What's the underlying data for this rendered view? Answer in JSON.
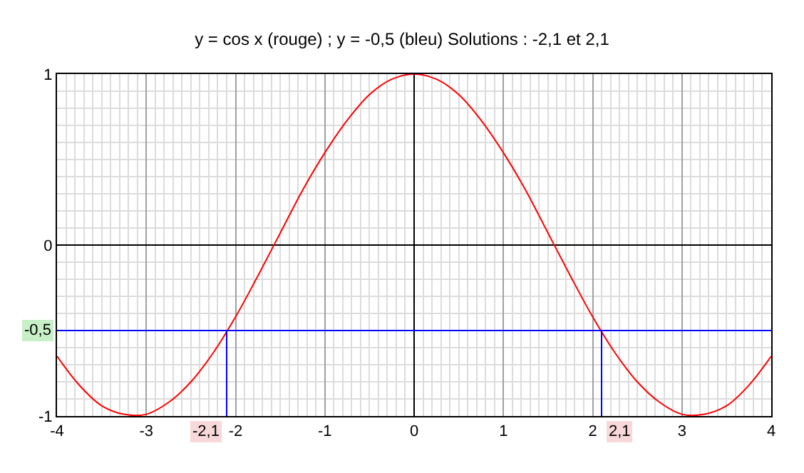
{
  "chart_data": {
    "type": "line",
    "title": "y = cos x (rouge) ; y = -0,5 (bleu) Solutions : -2,1 et 2,1",
    "series": [
      {
        "color": "#ff0000",
        "x": [
          -4,
          -3.75,
          -3.5,
          -3.25,
          -3,
          -2.75,
          -2.5,
          -2.25,
          -2,
          -1.75,
          -1.5,
          -1.25,
          -1,
          -0.75,
          -0.5,
          -0.25,
          0,
          0.25,
          0.5,
          0.75,
          1,
          1.25,
          1.5,
          1.75,
          2,
          2.25,
          2.5,
          2.75,
          3,
          3.25,
          3.5,
          3.75,
          4
        ],
        "values": [
          -0.65,
          -0.82,
          -0.94,
          -0.99,
          -0.99,
          -0.92,
          -0.8,
          -0.63,
          -0.42,
          -0.18,
          0.07,
          0.32,
          0.54,
          0.73,
          0.88,
          0.97,
          1,
          0.97,
          0.88,
          0.73,
          0.54,
          0.32,
          0.07,
          -0.18,
          -0.42,
          -0.63,
          -0.8,
          -0.92,
          -0.99,
          -0.99,
          -0.94,
          -0.82,
          -0.65
        ]
      },
      {
        "color": "#0000ff",
        "x": [
          -2.1,
          -2.1
        ],
        "values": [
          -0.5,
          -1
        ]
      },
      {
        "color": "#0000ff",
        "x": [
          2.1,
          2.1
        ],
        "values": [
          -0.5,
          -1
        ]
      }
    ],
    "ref_lines": [
      {
        "axis": "y",
        "value": -0.5,
        "label": "-0,5",
        "color": "#0000ff"
      }
    ],
    "annotations": [
      {
        "text": "-2,1",
        "x": -2.1,
        "y": -1
      },
      {
        "text": "2,1",
        "x": 2.1,
        "y": -1
      }
    ],
    "xlim": [
      -4,
      4
    ],
    "xticks": [
      -4,
      -3,
      -2,
      -1,
      0,
      1,
      2,
      3,
      4
    ],
    "ylim": [
      -1,
      1
    ],
    "yticks": [
      -1,
      0,
      1
    ],
    "grid": true,
    "marker": "none",
    "line_style": "solid"
  }
}
